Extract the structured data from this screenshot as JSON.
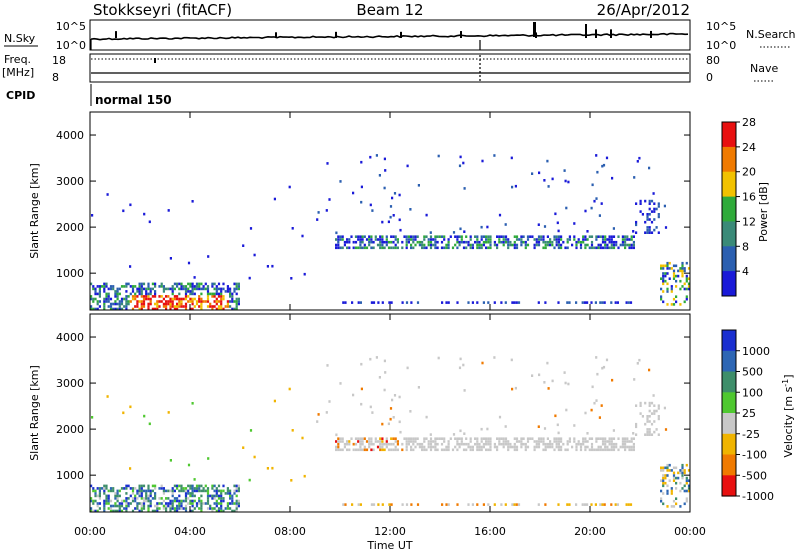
{
  "header": {
    "station": "Stokkseyri (fitACF)",
    "beam": "Beam 12",
    "date": "26/Apr/2012"
  },
  "noise_panel": {
    "left_label": "N.Sky",
    "left_ticks": [
      "10^5",
      "10^0"
    ],
    "right_label": "N.Search",
    "right_ticks": [
      "10^5",
      "10^0"
    ]
  },
  "freq_panel": {
    "left_label_1": "Freq.",
    "left_label_2": "[MHz]",
    "left_ticks": [
      "18",
      "8"
    ],
    "right_ticks": [
      "80",
      "0"
    ],
    "right_label": "Nave"
  },
  "cpid": {
    "label": "CPID",
    "value": "normal 150"
  },
  "chart_data": [
    {
      "type": "heatmap",
      "name": "power",
      "ylabel": "Slant Range [km]",
      "yticks": [
        "1000",
        "2000",
        "3000",
        "4000"
      ],
      "ylim": [
        200,
        4500
      ],
      "colorbar": {
        "label": "Power [dB]",
        "ticks": [
          "4",
          "8",
          "12",
          "16",
          "20",
          "24",
          "28"
        ],
        "colors": [
          "#1a1ad8",
          "#2b5fb0",
          "#3a8a78",
          "#2faa3a",
          "#f2c200",
          "#f07a00",
          "#e81010"
        ]
      },
      "regions": [
        {
          "t0": 0.0,
          "t1": 6.0,
          "r0": 300,
          "r1": 850,
          "level": "low-to-high"
        },
        {
          "t0": 1.5,
          "t1": 5.5,
          "r0": 300,
          "r1": 550,
          "level": "high"
        },
        {
          "t0": 9.8,
          "t1": 21.8,
          "r0": 1600,
          "r1": 1900,
          "level": "low"
        },
        {
          "t0": 21.8,
          "t1": 22.8,
          "r0": 1900,
          "r1": 2700,
          "level": "low"
        },
        {
          "t0": 10.0,
          "t1": 22.3,
          "r0": 380,
          "r1": 460,
          "level": "low"
        },
        {
          "t0": 22.8,
          "t1": 24.0,
          "r0": 400,
          "r1": 1300,
          "level": "low"
        }
      ]
    },
    {
      "type": "heatmap",
      "name": "velocity",
      "ylabel": "Slant Range [km]",
      "yticks": [
        "1000",
        "2000",
        "3000",
        "4000"
      ],
      "ylim": [
        200,
        4500
      ],
      "colorbar": {
        "label": "Velocity [m s^-1]",
        "ticks": [
          "1000",
          "500",
          "100",
          "25",
          "-25",
          "-100",
          "-500",
          "-1000"
        ],
        "colors": [
          "#1a2fd0",
          "#2d66b4",
          "#3e8e6a",
          "#4fc830",
          "#c8c8c8",
          "#f0b400",
          "#f07a00",
          "#e81010"
        ]
      },
      "xticks": [
        "00:00",
        "04:00",
        "08:00",
        "12:00",
        "16:00",
        "20:00",
        "00:00"
      ],
      "xlabel": "Time UT",
      "xlim": [
        0,
        24
      ]
    }
  ]
}
